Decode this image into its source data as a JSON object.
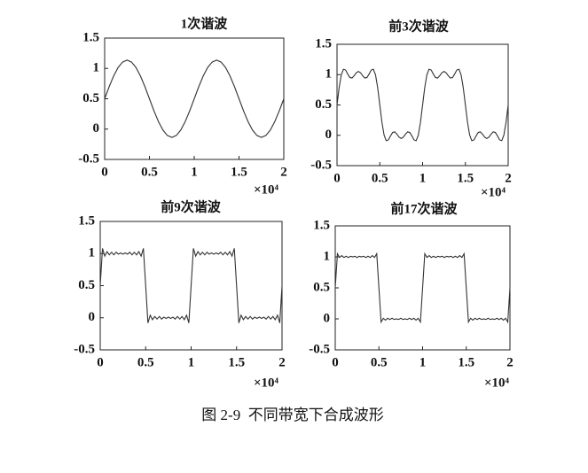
{
  "chart_data": [
    {
      "type": "line",
      "title": "1次谐波",
      "x_scale_label": "×10⁴",
      "color": "#333333",
      "xlim": [
        0,
        2
      ],
      "xticks": [
        0,
        0.5,
        1,
        1.5,
        2
      ],
      "ylim": [
        -0.5,
        1.5
      ],
      "yticks": [
        -0.5,
        0,
        0.5,
        1,
        1.5
      ],
      "x": [
        0,
        0.05,
        0.1,
        0.15,
        0.2,
        0.25,
        0.3,
        0.35,
        0.4,
        0.45,
        0.5,
        0.55,
        0.6,
        0.65,
        0.7,
        0.75,
        0.8,
        0.85,
        0.9,
        0.95,
        1,
        1.05,
        1.1,
        1.15,
        1.2,
        1.25,
        1.3,
        1.35,
        1.4,
        1.45,
        1.5,
        1.55,
        1.6,
        1.65,
        1.7,
        1.75,
        1.8,
        1.85,
        1.9,
        1.95,
        2
      ],
      "values": [
        0.5,
        0.697,
        0.874,
        1.015,
        1.105,
        1.137,
        1.105,
        1.015,
        0.874,
        0.697,
        0.5,
        0.303,
        0.126,
        -0.015,
        -0.105,
        -0.137,
        -0.105,
        -0.015,
        0.126,
        0.303,
        0.5,
        0.697,
        0.874,
        1.015,
        1.105,
        1.137,
        1.105,
        1.015,
        0.874,
        0.697,
        0.5,
        0.303,
        0.126,
        -0.015,
        -0.105,
        -0.137,
        -0.105,
        -0.015,
        0.126,
        0.303,
        0.5
      ]
    },
    {
      "type": "line",
      "title": "前3次谐波",
      "x_scale_label": "×10⁴",
      "color": "#333333",
      "xlim": [
        0,
        2
      ],
      "xticks": [
        0,
        0.5,
        1,
        1.5,
        2
      ],
      "ylim": [
        -0.5,
        1.5
      ],
      "yticks": [
        -0.5,
        0,
        0.5,
        1,
        1.5
      ],
      "x": [
        0,
        0.025,
        0.05,
        0.075,
        0.1,
        0.125,
        0.15,
        0.175,
        0.2,
        0.225,
        0.25,
        0.275,
        0.3,
        0.325,
        0.35,
        0.375,
        0.4,
        0.425,
        0.45,
        0.475,
        0.5,
        0.525,
        0.55,
        0.575,
        0.6,
        0.625,
        0.65,
        0.675,
        0.7,
        0.725,
        0.75,
        0.775,
        0.8,
        0.825,
        0.85,
        0.875,
        0.9,
        0.925,
        0.95,
        0.975,
        1,
        1.025,
        1.05,
        1.075,
        1.1,
        1.125,
        1.15,
        1.175,
        1.2,
        1.225,
        1.25,
        1.275,
        1.3,
        1.325,
        1.35,
        1.375,
        1.4,
        1.425,
        1.45,
        1.475,
        1.5,
        1.525,
        1.55,
        1.575,
        1.6,
        1.625,
        1.65,
        1.675,
        1.7,
        1.725,
        1.75,
        1.775,
        1.8,
        1.825,
        1.85,
        1.875,
        1.9,
        1.925,
        1.95,
        1.975,
        2
      ],
      "values": [
        0.5,
        0.786,
        0.996,
        1.089,
        1.076,
        1.01,
        0.953,
        0.944,
        0.981,
        1.03,
        1.052,
        1.03,
        0.981,
        0.944,
        0.953,
        1.01,
        1.076,
        1.089,
        0.996,
        0.786,
        0.5,
        0.214,
        0.004,
        -0.089,
        -0.076,
        -0.01,
        0.047,
        0.056,
        0.019,
        -0.03,
        -0.052,
        -0.03,
        0.019,
        0.056,
        0.047,
        -0.01,
        -0.076,
        -0.089,
        0.004,
        0.214,
        0.5,
        0.786,
        0.996,
        1.089,
        1.076,
        1.01,
        0.953,
        0.944,
        0.981,
        1.03,
        1.052,
        1.03,
        0.981,
        0.944,
        0.953,
        1.01,
        1.076,
        1.089,
        0.996,
        0.786,
        0.5,
        0.214,
        0.004,
        -0.089,
        -0.076,
        -0.01,
        0.047,
        0.056,
        0.019,
        -0.03,
        -0.052,
        -0.03,
        0.019,
        0.056,
        0.047,
        -0.01,
        -0.076,
        -0.089,
        0.004,
        0.214,
        0.5
      ]
    },
    {
      "type": "line",
      "title": "前9次谐波",
      "x_scale_label": "×10⁴",
      "color": "#333333",
      "xlim": [
        0,
        2
      ],
      "xticks": [
        0,
        0.5,
        1,
        1.5,
        2
      ],
      "ylim": [
        -0.5,
        1.5
      ],
      "yticks": [
        -0.5,
        0,
        0.5,
        1,
        1.5
      ],
      "x": [
        0,
        0.025,
        0.05,
        0.075,
        0.1,
        0.125,
        0.15,
        0.175,
        0.2,
        0.225,
        0.25,
        0.275,
        0.3,
        0.325,
        0.35,
        0.375,
        0.4,
        0.425,
        0.45,
        0.475,
        0.5,
        0.525,
        0.55,
        0.575,
        0.6,
        0.625,
        0.65,
        0.675,
        0.7,
        0.725,
        0.75,
        0.775,
        0.8,
        0.825,
        0.85,
        0.875,
        0.9,
        0.925,
        0.95,
        0.975,
        1,
        1.025,
        1.05,
        1.075,
        1.1,
        1.125,
        1.15,
        1.175,
        1.2,
        1.225,
        1.25,
        1.275,
        1.3,
        1.325,
        1.35,
        1.375,
        1.4,
        1.425,
        1.45,
        1.475,
        1.5,
        1.525,
        1.55,
        1.575,
        1.6,
        1.625,
        1.65,
        1.675,
        1.7,
        1.725,
        1.75,
        1.775,
        1.8,
        1.825,
        1.85,
        1.875,
        1.9,
        1.925,
        1.95,
        1.975,
        2
      ],
      "values": [
        0.5,
        1.08,
        0.96,
        1.03,
        0.98,
        1.02,
        0.98,
        1.02,
        0.99,
        1.01,
        0.99,
        1.01,
        0.99,
        1.02,
        0.98,
        1.02,
        0.98,
        1.03,
        0.96,
        1.08,
        0.5,
        -0.08,
        0.04,
        -0.03,
        0.02,
        -0.02,
        0.02,
        -0.02,
        0.01,
        -0.01,
        0.01,
        -0.01,
        0.01,
        -0.02,
        0.02,
        -0.02,
        0.02,
        -0.03,
        0.04,
        -0.08,
        0.5,
        1.08,
        0.96,
        1.03,
        0.98,
        1.02,
        0.98,
        1.02,
        0.99,
        1.01,
        0.99,
        1.01,
        0.99,
        1.02,
        0.98,
        1.02,
        0.98,
        1.03,
        0.96,
        1.08,
        0.5,
        -0.08,
        0.04,
        -0.03,
        0.02,
        -0.02,
        0.02,
        -0.02,
        0.01,
        -0.01,
        0.01,
        -0.01,
        0.01,
        -0.02,
        0.02,
        -0.02,
        0.02,
        -0.03,
        0.04,
        -0.08,
        0.5
      ]
    },
    {
      "type": "line",
      "title": "前17次谐波",
      "x_scale_label": "×10⁴",
      "color": "#333333",
      "xlim": [
        0,
        2
      ],
      "xticks": [
        0,
        0.5,
        1,
        1.5,
        2
      ],
      "ylim": [
        -0.5,
        1.5
      ],
      "yticks": [
        -0.5,
        0,
        0.5,
        1,
        1.5
      ],
      "x": [
        0,
        0.025,
        0.05,
        0.075,
        0.1,
        0.125,
        0.15,
        0.175,
        0.2,
        0.225,
        0.25,
        0.275,
        0.3,
        0.325,
        0.35,
        0.375,
        0.4,
        0.425,
        0.45,
        0.475,
        0.5,
        0.525,
        0.55,
        0.575,
        0.6,
        0.625,
        0.65,
        0.675,
        0.7,
        0.725,
        0.75,
        0.775,
        0.8,
        0.825,
        0.85,
        0.875,
        0.9,
        0.925,
        0.95,
        0.975,
        1,
        1.025,
        1.05,
        1.075,
        1.1,
        1.125,
        1.15,
        1.175,
        1.2,
        1.225,
        1.25,
        1.275,
        1.3,
        1.325,
        1.35,
        1.375,
        1.4,
        1.425,
        1.45,
        1.475,
        1.5,
        1.525,
        1.55,
        1.575,
        1.6,
        1.625,
        1.65,
        1.675,
        1.7,
        1.725,
        1.75,
        1.775,
        1.8,
        1.825,
        1.85,
        1.875,
        1.9,
        1.925,
        1.95,
        1.975,
        2
      ],
      "values": [
        0.5,
        1.05,
        0.99,
        1.02,
        0.99,
        1.01,
        0.99,
        1.01,
        1,
        1.01,
        0.99,
        1.01,
        1,
        1.01,
        0.99,
        1.01,
        0.99,
        1.02,
        0.99,
        1.05,
        0.5,
        -0.05,
        0.01,
        -0.02,
        0.01,
        -0.01,
        0.01,
        -0.01,
        0,
        -0.01,
        0.01,
        -0.01,
        0,
        -0.01,
        0.01,
        -0.01,
        0.01,
        -0.02,
        0.01,
        -0.05,
        0.5,
        1.05,
        0.99,
        1.02,
        0.99,
        1.01,
        0.99,
        1.01,
        1,
        1.01,
        0.99,
        1.01,
        1,
        1.01,
        0.99,
        1.01,
        0.99,
        1.02,
        0.99,
        1.05,
        0.5,
        -0.05,
        0.01,
        -0.02,
        0.01,
        -0.01,
        0.01,
        -0.01,
        0,
        -0.01,
        0.01,
        -0.01,
        0,
        -0.01,
        0.01,
        -0.01,
        0.01,
        -0.02,
        0.01,
        -0.05,
        0.5
      ]
    }
  ],
  "figure_caption": "图 2-9  不同带宽下合成波形"
}
